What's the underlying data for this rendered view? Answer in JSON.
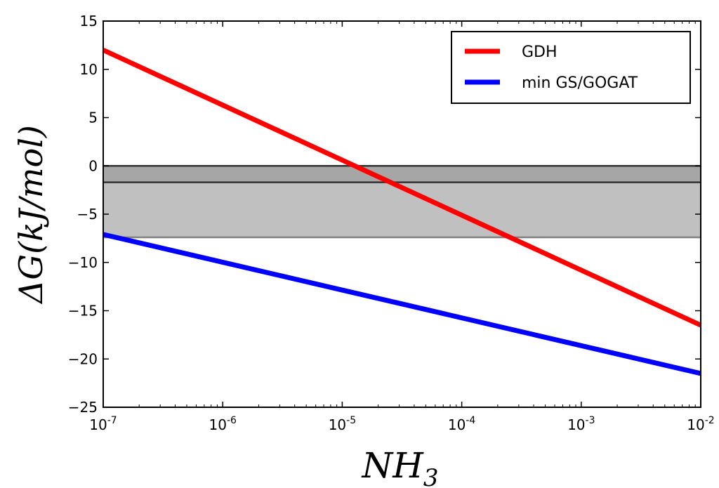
{
  "chart_data": {
    "type": "line",
    "title": "",
    "xlabel": "NH",
    "xlabel_sub": "3",
    "ylabel": "ΔG(kJ/mol)",
    "x_scale": "log",
    "xlim": [
      1e-07,
      0.01
    ],
    "ylim": [
      -25,
      15
    ],
    "x_ticks": [
      {
        "value": 1e-07,
        "base": "10",
        "exp": "-7"
      },
      {
        "value": 1e-06,
        "base": "10",
        "exp": "-6"
      },
      {
        "value": 1e-05,
        "base": "10",
        "exp": "-5"
      },
      {
        "value": 0.0001,
        "base": "10",
        "exp": "-4"
      },
      {
        "value": 0.001,
        "base": "10",
        "exp": "-3"
      },
      {
        "value": 0.01,
        "base": "10",
        "exp": "-2"
      }
    ],
    "y_ticks": [
      {
        "value": 15,
        "label": "15"
      },
      {
        "value": 10,
        "label": "10"
      },
      {
        "value": 5,
        "label": "5"
      },
      {
        "value": 0,
        "label": "0"
      },
      {
        "value": -5,
        "label": "−5"
      },
      {
        "value": -10,
        "label": "−10"
      },
      {
        "value": -15,
        "label": "−15"
      },
      {
        "value": -20,
        "label": "−20"
      },
      {
        "value": -25,
        "label": "−25"
      }
    ],
    "series": [
      {
        "name": "GDH",
        "color": "#ff0000",
        "x": [
          1e-07,
          0.01
        ],
        "y": [
          12.0,
          -16.5
        ]
      },
      {
        "name": "min GS/GOGAT",
        "color": "#0000ff",
        "x": [
          1e-07,
          0.01
        ],
        "y": [
          -7.1,
          -21.5
        ]
      }
    ],
    "bands": [
      {
        "y0": -1.7,
        "y1": 0.0,
        "color": "#a6a6a6",
        "edge_color": "#333333"
      },
      {
        "y0": -7.4,
        "y1": -1.7,
        "color": "#c0c0c0",
        "edge_color": "#808080"
      }
    ],
    "legend_position": "top-right"
  }
}
